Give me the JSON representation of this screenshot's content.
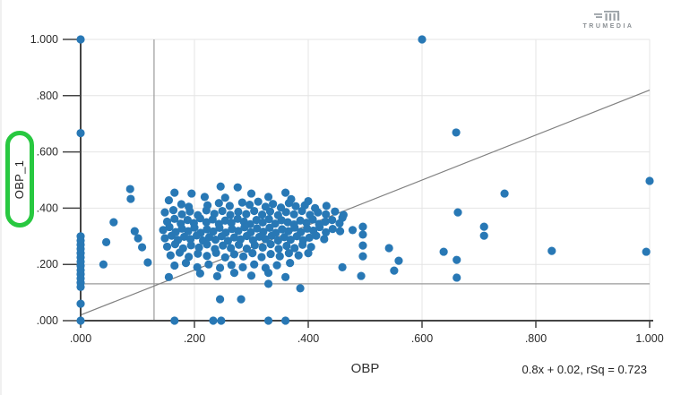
{
  "brand": {
    "name": "TRUMEDIA",
    "logo_icon": "trumedia-bars-icon"
  },
  "colors": {
    "point": "#2878b5",
    "axis": "#444444",
    "grid": "#e4e4e4",
    "reference_line": "#9a9a9a",
    "trend_line": "#808080",
    "tick_label": "#2b2b2b",
    "annotation_green": "#28c840",
    "logo_gray": "#9ba1a6"
  },
  "chart_data": {
    "type": "scatter",
    "title": "",
    "xlabel": "OBP",
    "ylabel": "OBP_1",
    "xlim": [
      0,
      1
    ],
    "ylim": [
      0,
      1
    ],
    "grid": true,
    "x_ticks": {
      "values": [
        0,
        0.2,
        0.4,
        0.6,
        0.8,
        1.0
      ],
      "labels": [
        ".000",
        ".200",
        ".400",
        ".600",
        ".800",
        "1.000"
      ]
    },
    "y_ticks": {
      "values": [
        0,
        0.2,
        0.4,
        0.6,
        0.8,
        1.0
      ],
      "labels": [
        ".000",
        ".200",
        ".400",
        ".600",
        ".800",
        "1.000"
      ]
    },
    "reference_lines": {
      "vertical_x": 0.129,
      "horizontal_y": 0.131
    },
    "trend_line": {
      "slope": 0.8,
      "intercept": 0.02,
      "r_squared": 0.723,
      "label": "0.8x + 0.02, rSq = 0.723"
    },
    "points": [
      [
        0,
        1
      ],
      [
        0.6,
        1
      ],
      [
        0,
        0.667
      ],
      [
        0.66,
        0.669
      ],
      [
        1,
        0.497
      ],
      [
        0.745,
        0.452
      ],
      [
        0.828,
        0.248
      ],
      [
        0.994,
        0.245
      ],
      [
        0.663,
        0.385
      ],
      [
        0.709,
        0.334
      ],
      [
        0.709,
        0.302
      ],
      [
        0.638,
        0.245
      ],
      [
        0.661,
        0.216
      ],
      [
        0.661,
        0.153
      ],
      [
        0.559,
        0.213
      ],
      [
        0.551,
        0.178
      ],
      [
        0.542,
        0.258
      ],
      [
        0.496,
        0.334
      ],
      [
        0.496,
        0.306
      ],
      [
        0.496,
        0.267
      ],
      [
        0.496,
        0.229
      ],
      [
        0.493,
        0.159
      ],
      [
        0.46,
        0.366
      ],
      [
        0.46,
        0.19
      ],
      [
        0.478,
        0.322
      ],
      [
        0.386,
        0.115
      ],
      [
        0.33,
        0.131
      ],
      [
        0.245,
        0.076
      ],
      [
        0.282,
        0.076
      ],
      [
        0,
        0
      ],
      [
        0.165,
        0
      ],
      [
        0.233,
        0
      ],
      [
        0.247,
        0
      ],
      [
        0.33,
        0
      ],
      [
        0.36,
        0
      ],
      [
        0,
        0.3
      ],
      [
        0,
        0.285
      ],
      [
        0,
        0.27
      ],
      [
        0,
        0.255
      ],
      [
        0,
        0.24
      ],
      [
        0,
        0.225
      ],
      [
        0,
        0.21
      ],
      [
        0,
        0.195
      ],
      [
        0,
        0.18
      ],
      [
        0,
        0.165
      ],
      [
        0,
        0.15
      ],
      [
        0,
        0.135
      ],
      [
        0,
        0.12
      ],
      [
        0,
        0.06
      ],
      [
        0.04,
        0.2
      ],
      [
        0.045,
        0.279
      ],
      [
        0.058,
        0.35
      ],
      [
        0.087,
        0.468
      ],
      [
        0.088,
        0.433
      ],
      [
        0.095,
        0.318
      ],
      [
        0.101,
        0.293
      ],
      [
        0.108,
        0.261
      ],
      [
        0.118,
        0.207
      ],
      [
        0.195,
        0.452
      ],
      [
        0.246,
        0.477
      ],
      [
        0.276,
        0.474
      ],
      [
        0.165,
        0.455
      ],
      [
        0.36,
        0.455
      ],
      [
        0.3,
        0.452
      ],
      [
        0.218,
        0.44
      ],
      [
        0.254,
        0.437
      ],
      [
        0.33,
        0.44
      ],
      [
        0.37,
        0.432
      ],
      [
        0.4,
        0.425
      ],
      [
        0.155,
        0.428
      ],
      [
        0.177,
        0.414
      ],
      [
        0.19,
        0.405
      ],
      [
        0.223,
        0.41
      ],
      [
        0.243,
        0.418
      ],
      [
        0.262,
        0.408
      ],
      [
        0.284,
        0.42
      ],
      [
        0.297,
        0.412
      ],
      [
        0.312,
        0.423
      ],
      [
        0.325,
        0.405
      ],
      [
        0.338,
        0.415
      ],
      [
        0.352,
        0.402
      ],
      [
        0.366,
        0.418
      ],
      [
        0.378,
        0.407
      ],
      [
        0.394,
        0.41
      ],
      [
        0.412,
        0.4
      ],
      [
        0.432,
        0.408
      ],
      [
        0.148,
        0.385
      ],
      [
        0.163,
        0.393
      ],
      [
        0.178,
        0.378
      ],
      [
        0.192,
        0.388
      ],
      [
        0.206,
        0.375
      ],
      [
        0.221,
        0.392
      ],
      [
        0.235,
        0.38
      ],
      [
        0.249,
        0.39
      ],
      [
        0.263,
        0.376
      ],
      [
        0.277,
        0.387
      ],
      [
        0.291,
        0.379
      ],
      [
        0.305,
        0.39
      ],
      [
        0.319,
        0.377
      ],
      [
        0.333,
        0.388
      ],
      [
        0.347,
        0.375
      ],
      [
        0.361,
        0.386
      ],
      [
        0.375,
        0.378
      ],
      [
        0.389,
        0.39
      ],
      [
        0.403,
        0.376
      ],
      [
        0.417,
        0.385
      ],
      [
        0.431,
        0.378
      ],
      [
        0.447,
        0.388
      ],
      [
        0.462,
        0.376
      ],
      [
        0.152,
        0.352
      ],
      [
        0.165,
        0.362
      ],
      [
        0.176,
        0.345
      ],
      [
        0.188,
        0.358
      ],
      [
        0.199,
        0.347
      ],
      [
        0.21,
        0.364
      ],
      [
        0.221,
        0.35
      ],
      [
        0.232,
        0.36
      ],
      [
        0.243,
        0.344
      ],
      [
        0.254,
        0.356
      ],
      [
        0.265,
        0.348
      ],
      [
        0.276,
        0.362
      ],
      [
        0.287,
        0.352
      ],
      [
        0.298,
        0.343
      ],
      [
        0.309,
        0.358
      ],
      [
        0.32,
        0.349
      ],
      [
        0.331,
        0.361
      ],
      [
        0.342,
        0.345
      ],
      [
        0.353,
        0.357
      ],
      [
        0.364,
        0.35
      ],
      [
        0.375,
        0.342
      ],
      [
        0.386,
        0.356
      ],
      [
        0.397,
        0.348
      ],
      [
        0.408,
        0.36
      ],
      [
        0.419,
        0.344
      ],
      [
        0.43,
        0.352
      ],
      [
        0.442,
        0.358
      ],
      [
        0.455,
        0.346
      ],
      [
        0.145,
        0.322
      ],
      [
        0.156,
        0.333
      ],
      [
        0.167,
        0.315
      ],
      [
        0.178,
        0.327
      ],
      [
        0.189,
        0.318
      ],
      [
        0.2,
        0.331
      ],
      [
        0.211,
        0.312
      ],
      [
        0.222,
        0.325
      ],
      [
        0.233,
        0.317
      ],
      [
        0.244,
        0.33
      ],
      [
        0.255,
        0.313
      ],
      [
        0.266,
        0.326
      ],
      [
        0.277,
        0.319
      ],
      [
        0.288,
        0.332
      ],
      [
        0.299,
        0.314
      ],
      [
        0.31,
        0.328
      ],
      [
        0.321,
        0.316
      ],
      [
        0.332,
        0.33
      ],
      [
        0.343,
        0.312
      ],
      [
        0.354,
        0.325
      ],
      [
        0.365,
        0.318
      ],
      [
        0.376,
        0.331
      ],
      [
        0.387,
        0.315
      ],
      [
        0.398,
        0.327
      ],
      [
        0.409,
        0.32
      ],
      [
        0.42,
        0.333
      ],
      [
        0.431,
        0.314
      ],
      [
        0.443,
        0.326
      ],
      [
        0.456,
        0.318
      ],
      [
        0.148,
        0.293
      ],
      [
        0.16,
        0.302
      ],
      [
        0.171,
        0.287
      ],
      [
        0.182,
        0.298
      ],
      [
        0.193,
        0.29
      ],
      [
        0.204,
        0.303
      ],
      [
        0.215,
        0.285
      ],
      [
        0.226,
        0.297
      ],
      [
        0.237,
        0.288
      ],
      [
        0.248,
        0.3
      ],
      [
        0.259,
        0.284
      ],
      [
        0.27,
        0.296
      ],
      [
        0.281,
        0.289
      ],
      [
        0.292,
        0.301
      ],
      [
        0.303,
        0.286
      ],
      [
        0.314,
        0.298
      ],
      [
        0.325,
        0.29
      ],
      [
        0.336,
        0.302
      ],
      [
        0.347,
        0.285
      ],
      [
        0.358,
        0.297
      ],
      [
        0.369,
        0.288
      ],
      [
        0.38,
        0.3
      ],
      [
        0.391,
        0.286
      ],
      [
        0.402,
        0.295
      ],
      [
        0.414,
        0.302
      ],
      [
        0.428,
        0.29
      ],
      [
        0.152,
        0.263
      ],
      [
        0.166,
        0.272
      ],
      [
        0.18,
        0.257
      ],
      [
        0.194,
        0.268
      ],
      [
        0.208,
        0.26
      ],
      [
        0.222,
        0.271
      ],
      [
        0.236,
        0.255
      ],
      [
        0.25,
        0.267
      ],
      [
        0.264,
        0.258
      ],
      [
        0.278,
        0.27
      ],
      [
        0.292,
        0.256
      ],
      [
        0.306,
        0.268
      ],
      [
        0.32,
        0.26
      ],
      [
        0.334,
        0.272
      ],
      [
        0.348,
        0.255
      ],
      [
        0.362,
        0.266
      ],
      [
        0.376,
        0.258
      ],
      [
        0.39,
        0.27
      ],
      [
        0.405,
        0.262
      ],
      [
        0.158,
        0.232
      ],
      [
        0.174,
        0.242
      ],
      [
        0.19,
        0.227
      ],
      [
        0.206,
        0.238
      ],
      [
        0.222,
        0.23
      ],
      [
        0.238,
        0.241
      ],
      [
        0.254,
        0.225
      ],
      [
        0.27,
        0.236
      ],
      [
        0.286,
        0.228
      ],
      [
        0.302,
        0.24
      ],
      [
        0.318,
        0.226
      ],
      [
        0.334,
        0.237
      ],
      [
        0.35,
        0.229
      ],
      [
        0.366,
        0.24
      ],
      [
        0.383,
        0.232
      ],
      [
        0.4,
        0.24
      ],
      [
        0.165,
        0.196
      ],
      [
        0.185,
        0.205
      ],
      [
        0.205,
        0.19
      ],
      [
        0.225,
        0.2
      ],
      [
        0.245,
        0.188
      ],
      [
        0.265,
        0.198
      ],
      [
        0.285,
        0.19
      ],
      [
        0.305,
        0.2
      ],
      [
        0.325,
        0.188
      ],
      [
        0.345,
        0.197
      ],
      [
        0.368,
        0.205
      ],
      [
        0.21,
        0.168
      ],
      [
        0.24,
        0.158
      ],
      [
        0.27,
        0.17
      ],
      [
        0.3,
        0.16
      ],
      [
        0.33,
        0.17
      ],
      [
        0.155,
        0.155
      ],
      [
        0.36,
        0.155
      ]
    ]
  }
}
